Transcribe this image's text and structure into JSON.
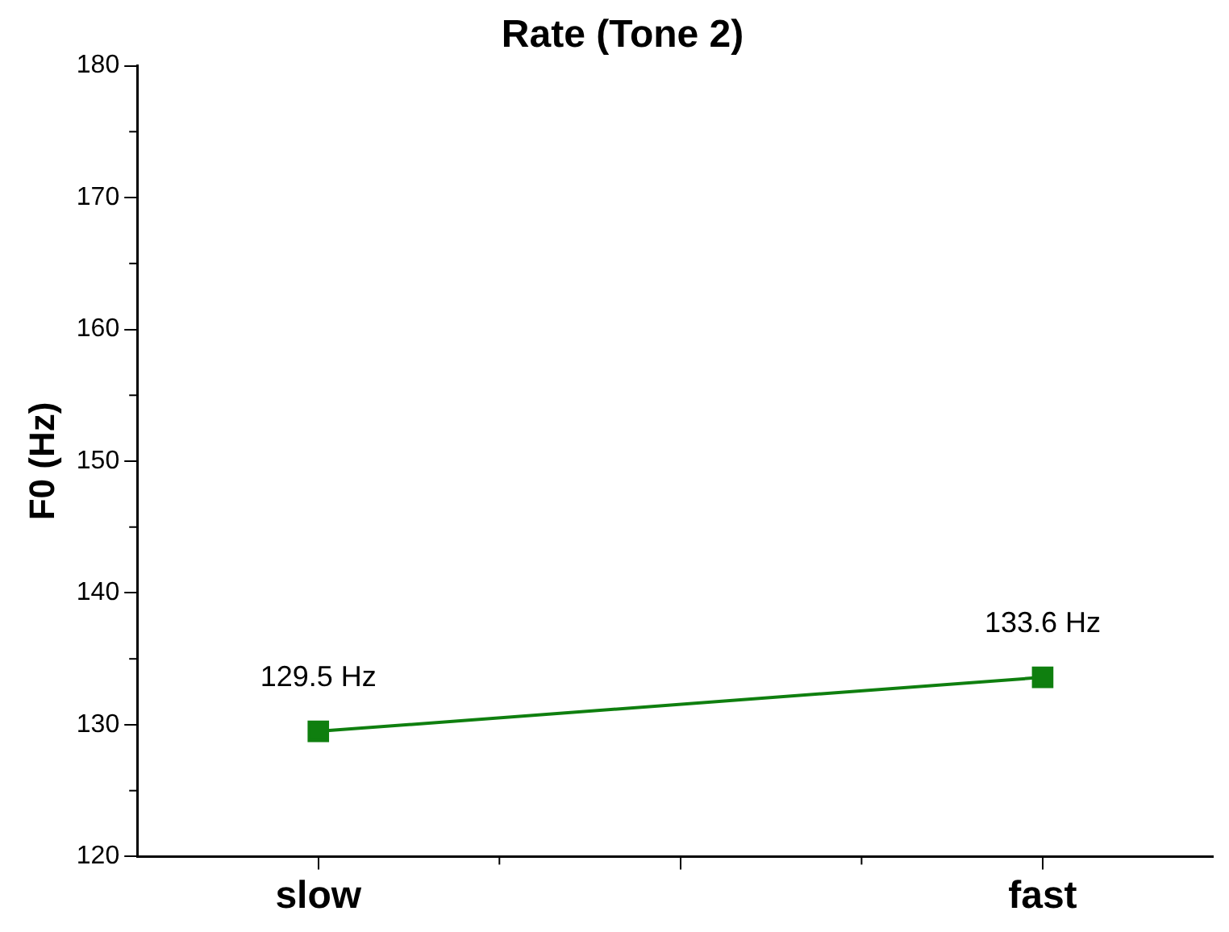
{
  "chart_data": {
    "type": "line",
    "title": "Rate (Tone 2)",
    "ylabel": "F0 (Hz)",
    "categories": [
      "slow",
      "fast"
    ],
    "series": [
      {
        "color": "#0f7f0f",
        "values": [
          129.5,
          133.6
        ],
        "value_labels": [
          "129.5 Hz",
          "133.6 Hz"
        ]
      }
    ],
    "ylim": [
      120,
      180
    ],
    "yticks": [
      120,
      130,
      140,
      150,
      160,
      170,
      180
    ],
    "marker": "square",
    "line_style": "solid",
    "grid": false,
    "legend": false
  }
}
